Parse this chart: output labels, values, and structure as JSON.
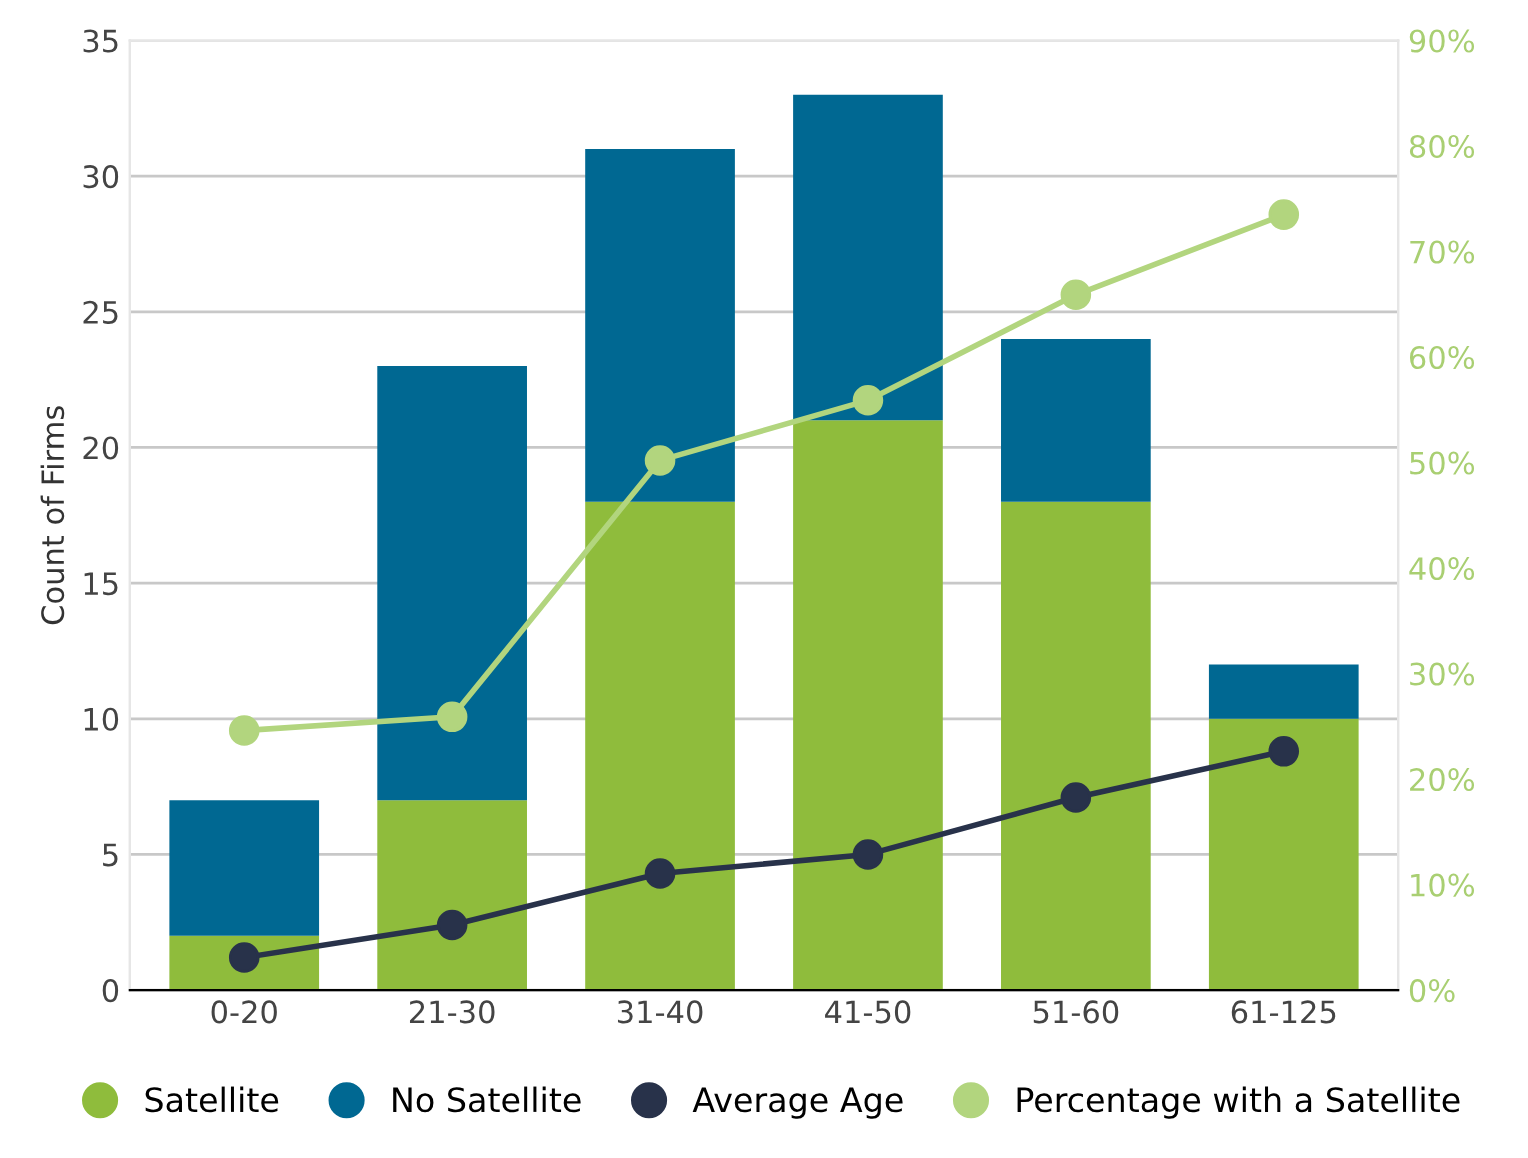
{
  "chart_data": {
    "type": "bar",
    "stacked": true,
    "ylabel": "Count of Firms",
    "categories": [
      "0-20",
      "21-30",
      "31-40",
      "41-50",
      "51-60",
      "61-125"
    ],
    "series": [
      {
        "name": "Satellite",
        "color": "#8fbc3c",
        "values": [
          2,
          7,
          18,
          21,
          18,
          10
        ]
      },
      {
        "name": "No Satellite",
        "color": "#006892",
        "values": [
          5,
          16,
          13,
          12,
          6,
          2
        ]
      },
      {
        "name": "Average Age",
        "type": "line",
        "color": "#28324a",
        "values": [
          1.2,
          2.4,
          4.3,
          5.0,
          7.1,
          8.8
        ]
      },
      {
        "name": "Percentage with a Satellite",
        "type": "line",
        "axis": "y2",
        "color": "#b2d57e",
        "values": [
          24.6,
          25.9,
          50.2,
          55.9,
          65.9,
          73.5
        ]
      }
    ],
    "ylim": [
      0,
      35
    ],
    "yticks": [
      0,
      5,
      10,
      15,
      20,
      25,
      30,
      35
    ],
    "y2lim": [
      0,
      90
    ],
    "y2ticks": [
      {
        "value": 0,
        "label": "0%"
      },
      {
        "value": 10,
        "label": "10%"
      },
      {
        "value": 20,
        "label": "20%"
      },
      {
        "value": 30,
        "label": "30%"
      },
      {
        "value": 40,
        "label": "40%"
      },
      {
        "value": 50,
        "label": "50%"
      },
      {
        "value": 60,
        "label": "60%"
      },
      {
        "value": 70,
        "label": "70%"
      },
      {
        "value": 80,
        "label": "80%"
      },
      {
        "value": 90,
        "label": "90%"
      }
    ],
    "grid": "y",
    "legend": "bottom",
    "marker": "circle",
    "line_style": "solid"
  }
}
